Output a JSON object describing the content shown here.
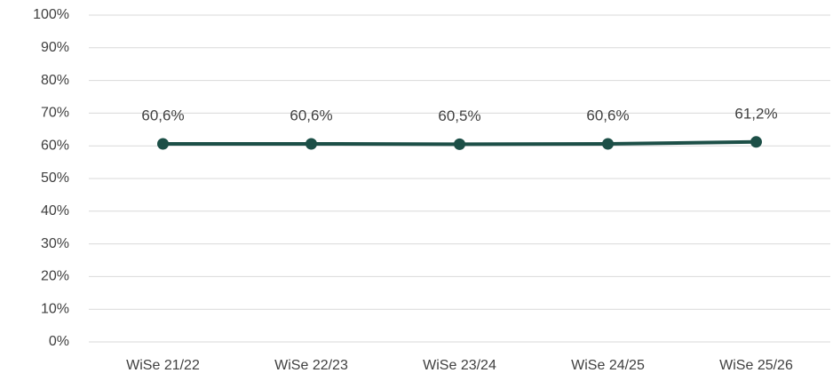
{
  "chart_data": {
    "type": "line",
    "categories": [
      "WiSe 21/22",
      "WiSe 22/23",
      "WiSe 23/24",
      "WiSe 24/25",
      "WiSe 25/26"
    ],
    "series": [
      {
        "color": "#1c4f47",
        "values": [
          60.6,
          60.6,
          60.5,
          60.6,
          61.2
        ],
        "value_labels": [
          "60,6%",
          "60,6%",
          "60,5%",
          "60,6%",
          "61,2%"
        ]
      }
    ],
    "ylim": [
      0,
      100
    ],
    "yticks": [
      {
        "value": 0,
        "label": "0%"
      },
      {
        "value": 10,
        "label": "10%"
      },
      {
        "value": 20,
        "label": "20%"
      },
      {
        "value": 30,
        "label": "30%"
      },
      {
        "value": 40,
        "label": "40%"
      },
      {
        "value": 50,
        "label": "50%"
      },
      {
        "value": 60,
        "label": "60%"
      },
      {
        "value": 70,
        "label": "70%"
      },
      {
        "value": 80,
        "label": "80%"
      },
      {
        "value": 90,
        "label": "90%"
      },
      {
        "value": 100,
        "label": "100%"
      }
    ],
    "grid": true
  }
}
